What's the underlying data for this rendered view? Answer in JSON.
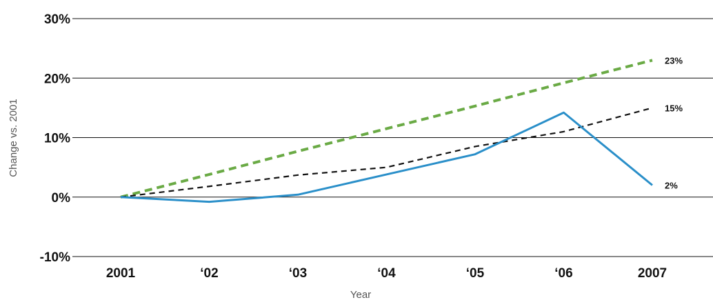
{
  "chart_data": {
    "type": "line",
    "title": "",
    "xlabel": "Year",
    "ylabel": "Change vs. 2001",
    "categories": [
      "2001",
      "‘02",
      "‘03",
      "‘04",
      "‘05",
      "‘06",
      "2007"
    ],
    "ylim": [
      -10,
      30
    ],
    "yticks": [
      -10,
      0,
      10,
      20,
      30
    ],
    "ytick_labels": [
      "-10%",
      "0%",
      "10%",
      "20%",
      "30%"
    ],
    "grid": true,
    "legend": "none",
    "series": [
      {
        "values": [
          0,
          3.8,
          7.7,
          11.5,
          15.3,
          19.2,
          23
        ],
        "color": "#6aaa45",
        "style": "dashed-thick",
        "end_label": "23%"
      },
      {
        "values": [
          0,
          1.8,
          3.7,
          5.0,
          8.5,
          11.0,
          15
        ],
        "color": "#111111",
        "style": "dashed",
        "end_label": "15%"
      },
      {
        "values": [
          0,
          -0.8,
          0.4,
          3.8,
          7.2,
          14.2,
          2
        ],
        "color": "#2a8fc9",
        "style": "solid",
        "end_label": "2%"
      }
    ]
  }
}
